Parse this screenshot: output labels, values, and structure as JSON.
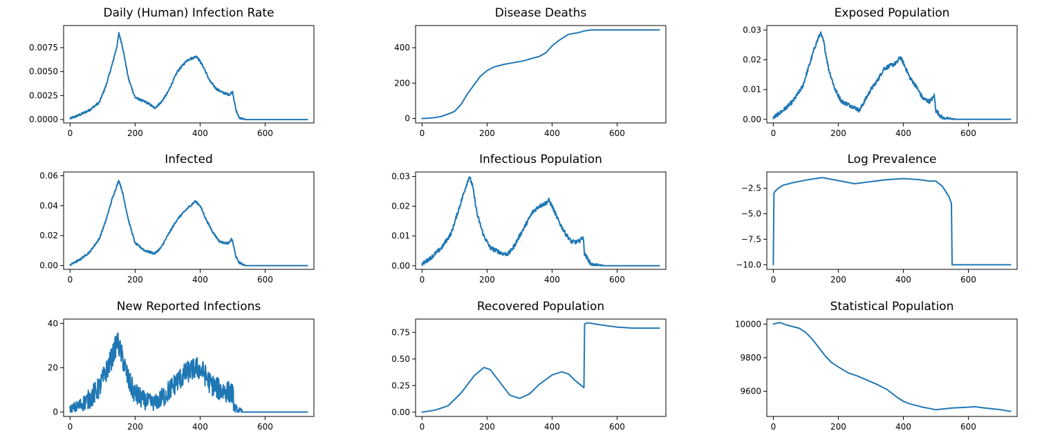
{
  "figure": {
    "line_color": "#1f77b4"
  },
  "chart_data": [
    {
      "type": "line",
      "title": "Daily (Human) Infection Rate",
      "xlim": [
        -20,
        750
      ],
      "ylim": [
        -0.00035,
        0.0098
      ],
      "xticks": [
        0,
        200,
        400,
        600
      ],
      "xtick_labels": [
        "0",
        "200",
        "400",
        "600"
      ],
      "yticks": [
        0,
        0.0025,
        0.005,
        0.0075
      ],
      "ytick_labels": [
        "0.0000",
        "0.0025",
        "0.0050",
        "0.0075"
      ],
      "series": [
        {
          "noise": 0.00012,
          "x": [
            0,
            30,
            60,
            90,
            110,
            130,
            145,
            150,
            160,
            180,
            200,
            220,
            240,
            260,
            280,
            300,
            330,
            360,
            390,
            410,
            430,
            450,
            470,
            490,
            500,
            510,
            520,
            540,
            560,
            600,
            650,
            700,
            730
          ],
          "y": [
            0.0001,
            0.0005,
            0.001,
            0.0018,
            0.0035,
            0.0058,
            0.0078,
            0.009,
            0.0078,
            0.0042,
            0.0023,
            0.002,
            0.0017,
            0.0012,
            0.0018,
            0.0028,
            0.005,
            0.0062,
            0.0066,
            0.0055,
            0.004,
            0.0032,
            0.0028,
            0.0026,
            0.0029,
            0.001,
            0.0002,
            0.0,
            0.0,
            0.0,
            0.0,
            0.0,
            0.0
          ]
        }
      ]
    },
    {
      "type": "line",
      "title": "Disease Deaths",
      "xlim": [
        -20,
        750
      ],
      "ylim": [
        -25,
        525
      ],
      "xticks": [
        0,
        200,
        400,
        600
      ],
      "xtick_labels": [
        "0",
        "200",
        "400",
        "600"
      ],
      "yticks": [
        0,
        200,
        400
      ],
      "ytick_labels": [
        "0",
        "200",
        "400"
      ],
      "series": [
        {
          "noise": 0,
          "x": [
            0,
            20,
            40,
            60,
            80,
            100,
            120,
            140,
            160,
            180,
            200,
            220,
            250,
            280,
            310,
            340,
            360,
            380,
            400,
            420,
            450,
            480,
            500,
            520,
            600,
            650,
            700,
            730
          ],
          "y": [
            0,
            2,
            5,
            12,
            25,
            40,
            80,
            140,
            190,
            240,
            270,
            290,
            305,
            315,
            325,
            340,
            350,
            370,
            410,
            440,
            475,
            485,
            495,
            500,
            500,
            500,
            500,
            500
          ]
        }
      ]
    },
    {
      "type": "line",
      "title": "Exposed Population",
      "xlim": [
        -20,
        750
      ],
      "ylim": [
        -0.0012,
        0.0315
      ],
      "xticks": [
        0,
        200,
        400,
        600
      ],
      "xtick_labels": [
        "0",
        "200",
        "400",
        "600"
      ],
      "yticks": [
        0,
        0.01,
        0.02,
        0.03
      ],
      "ytick_labels": [
        "0.00",
        "0.01",
        "0.02",
        "0.03"
      ],
      "series": [
        {
          "noise": 0.0007,
          "x": [
            0,
            30,
            60,
            90,
            110,
            130,
            145,
            155,
            170,
            190,
            210,
            230,
            250,
            265,
            280,
            300,
            320,
            340,
            360,
            380,
            390,
            400,
            420,
            440,
            460,
            480,
            490,
            495,
            500,
            520,
            560,
            600,
            650,
            700,
            730
          ],
          "y": [
            0.0005,
            0.003,
            0.006,
            0.011,
            0.018,
            0.025,
            0.029,
            0.026,
            0.017,
            0.01,
            0.006,
            0.005,
            0.004,
            0.003,
            0.006,
            0.01,
            0.013,
            0.017,
            0.018,
            0.019,
            0.021,
            0.019,
            0.014,
            0.011,
            0.007,
            0.006,
            0.007,
            0.008,
            0.003,
            0.0005,
            0.0,
            0.0,
            0.0,
            0.0,
            0.0
          ]
        }
      ]
    },
    {
      "type": "line",
      "title": "Infected",
      "xlim": [
        -20,
        750
      ],
      "ylim": [
        -0.0025,
        0.0625
      ],
      "xticks": [
        0,
        200,
        400,
        600
      ],
      "xtick_labels": [
        "0",
        "200",
        "400",
        "600"
      ],
      "yticks": [
        0,
        0.02,
        0.04,
        0.06
      ],
      "ytick_labels": [
        "0.00",
        "0.02",
        "0.04",
        "0.06"
      ],
      "series": [
        {
          "noise": 0.0007,
          "x": [
            0,
            30,
            60,
            90,
            110,
            130,
            145,
            150,
            160,
            180,
            200,
            230,
            260,
            280,
            300,
            330,
            360,
            385,
            400,
            420,
            440,
            460,
            480,
            490,
            495,
            500,
            510,
            520,
            540,
            600,
            650,
            700,
            730
          ],
          "y": [
            0.0005,
            0.004,
            0.009,
            0.018,
            0.03,
            0.045,
            0.054,
            0.057,
            0.05,
            0.03,
            0.015,
            0.01,
            0.008,
            0.012,
            0.02,
            0.031,
            0.038,
            0.043,
            0.04,
            0.03,
            0.022,
            0.016,
            0.015,
            0.015,
            0.018,
            0.016,
            0.006,
            0.002,
            0.0,
            0.0,
            0.0,
            0.0,
            0.0
          ]
        }
      ]
    },
    {
      "type": "line",
      "title": "Infectious Population",
      "xlim": [
        -20,
        750
      ],
      "ylim": [
        -0.0012,
        0.0315
      ],
      "xticks": [
        0,
        200,
        400,
        600
      ],
      "xtick_labels": [
        "0",
        "200",
        "400",
        "600"
      ],
      "yticks": [
        0,
        0.01,
        0.02,
        0.03
      ],
      "ytick_labels": [
        "0.00",
        "0.01",
        "0.02",
        "0.03"
      ],
      "series": [
        {
          "noise": 0.0007,
          "x": [
            0,
            30,
            60,
            90,
            110,
            130,
            145,
            155,
            170,
            190,
            210,
            230,
            250,
            265,
            280,
            300,
            320,
            340,
            360,
            380,
            390,
            400,
            420,
            440,
            460,
            480,
            490,
            495,
            500,
            520,
            560,
            600,
            650,
            700,
            730
          ],
          "y": [
            0.0005,
            0.003,
            0.006,
            0.011,
            0.018,
            0.025,
            0.03,
            0.027,
            0.017,
            0.01,
            0.006,
            0.005,
            0.004,
            0.004,
            0.006,
            0.01,
            0.014,
            0.018,
            0.02,
            0.021,
            0.022,
            0.02,
            0.015,
            0.011,
            0.008,
            0.008,
            0.009,
            0.01,
            0.004,
            0.0005,
            0.0,
            0.0,
            0.0,
            0.0,
            0.0
          ]
        }
      ]
    },
    {
      "type": "line",
      "title": "Log Prevalence",
      "xlim": [
        -20,
        750
      ],
      "ylim": [
        -10.45,
        -0.9
      ],
      "xticks": [
        0,
        200,
        400,
        600
      ],
      "xtick_labels": [
        "0",
        "200",
        "400",
        "600"
      ],
      "yticks": [
        -2.5,
        -5.0,
        -7.5,
        -10.0
      ],
      "ytick_labels": [
        "−2.5",
        "−5.0",
        "−7.5",
        "−10.0"
      ],
      "series": [
        {
          "noise": 0,
          "x": [
            0,
            2,
            5,
            15,
            30,
            60,
            100,
            150,
            200,
            250,
            300,
            350,
            400,
            450,
            480,
            500,
            520,
            540,
            548,
            550,
            552,
            560,
            600,
            650,
            700,
            730
          ],
          "y": [
            -10.0,
            -3.0,
            -2.8,
            -2.5,
            -2.2,
            -1.95,
            -1.7,
            -1.45,
            -1.75,
            -2.05,
            -1.85,
            -1.65,
            -1.55,
            -1.65,
            -1.8,
            -1.8,
            -2.3,
            -3.3,
            -4.0,
            -10.0,
            -10.0,
            -10.0,
            -10.0,
            -10.0,
            -10.0,
            -10.0
          ]
        }
      ]
    },
    {
      "type": "line",
      "title": "New Reported Infections",
      "xlim": [
        -20,
        750
      ],
      "ylim": [
        -2,
        42
      ],
      "xticks": [
        0,
        200,
        400,
        600
      ],
      "xtick_labels": [
        "0",
        "200",
        "400",
        "600"
      ],
      "yticks": [
        0,
        20,
        40
      ],
      "ytick_labels": [
        "0",
        "20",
        "40"
      ],
      "series": [
        {
          "noise": 5,
          "x": [
            0,
            30,
            60,
            90,
            110,
            130,
            145,
            160,
            180,
            200,
            230,
            260,
            280,
            300,
            330,
            360,
            390,
            410,
            430,
            460,
            490,
            500,
            505,
            515,
            530,
            600,
            650,
            700,
            730
          ],
          "y": [
            1,
            3,
            6,
            11,
            18,
            25,
            32,
            25,
            14,
            8,
            5,
            4,
            6,
            9,
            14,
            18,
            20,
            18,
            13,
            10,
            9,
            8,
            2,
            0.5,
            0,
            0,
            0,
            0,
            0
          ]
        }
      ]
    },
    {
      "type": "line",
      "title": "Recovered Population",
      "xlim": [
        -20,
        750
      ],
      "ylim": [
        -0.04,
        0.875
      ],
      "xticks": [
        0,
        200,
        400,
        600
      ],
      "xtick_labels": [
        "0",
        "200",
        "400",
        "600"
      ],
      "yticks": [
        0,
        0.25,
        0.5,
        0.75
      ],
      "ytick_labels": [
        "0.00",
        "0.25",
        "0.50",
        "0.75"
      ],
      "series": [
        {
          "noise": 0,
          "x": [
            0,
            40,
            80,
            120,
            160,
            190,
            210,
            240,
            270,
            300,
            330,
            360,
            400,
            430,
            450,
            470,
            490,
            498,
            500,
            510,
            550,
            600,
            650,
            700,
            730
          ],
          "y": [
            0.0,
            0.02,
            0.06,
            0.18,
            0.34,
            0.42,
            0.4,
            0.28,
            0.16,
            0.13,
            0.17,
            0.26,
            0.35,
            0.38,
            0.36,
            0.3,
            0.25,
            0.23,
            0.83,
            0.84,
            0.82,
            0.8,
            0.79,
            0.79,
            0.79
          ]
        }
      ]
    },
    {
      "type": "line",
      "title": "Statistical Population",
      "xlim": [
        -20,
        750
      ],
      "ylim": [
        9450,
        10030
      ],
      "xticks": [
        0,
        200,
        400,
        600
      ],
      "xtick_labels": [
        "0",
        "200",
        "400",
        "600"
      ],
      "yticks": [
        9600,
        9800,
        10000
      ],
      "ytick_labels": [
        "9600",
        "9800",
        "10000"
      ],
      "series": [
        {
          "noise": 0,
          "x": [
            0,
            20,
            40,
            60,
            80,
            100,
            120,
            140,
            160,
            180,
            200,
            230,
            260,
            290,
            320,
            350,
            380,
            400,
            420,
            440,
            460,
            480,
            500,
            550,
            600,
            620,
            650,
            700,
            730
          ],
          "y": [
            10000,
            10010,
            9995,
            9985,
            9975,
            9950,
            9910,
            9860,
            9810,
            9770,
            9745,
            9710,
            9690,
            9665,
            9640,
            9610,
            9565,
            9540,
            9525,
            9515,
            9505,
            9498,
            9490,
            9500,
            9505,
            9508,
            9500,
            9490,
            9480
          ]
        }
      ]
    }
  ]
}
